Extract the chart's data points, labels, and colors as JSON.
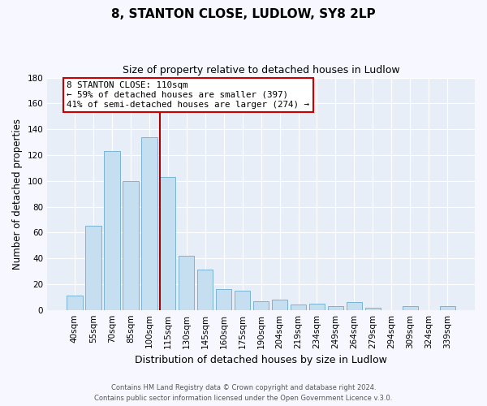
{
  "title": "8, STANTON CLOSE, LUDLOW, SY8 2LP",
  "subtitle": "Size of property relative to detached houses in Ludlow",
  "xlabel": "Distribution of detached houses by size in Ludlow",
  "ylabel": "Number of detached properties",
  "bar_labels": [
    "40sqm",
    "55sqm",
    "70sqm",
    "85sqm",
    "100sqm",
    "115sqm",
    "130sqm",
    "145sqm",
    "160sqm",
    "175sqm",
    "190sqm",
    "204sqm",
    "219sqm",
    "234sqm",
    "249sqm",
    "264sqm",
    "279sqm",
    "294sqm",
    "309sqm",
    "324sqm",
    "339sqm"
  ],
  "bar_values": [
    11,
    65,
    123,
    100,
    134,
    103,
    42,
    31,
    16,
    15,
    7,
    8,
    4,
    5,
    3,
    6,
    2,
    0,
    3,
    0,
    3
  ],
  "bar_color": "#c5dff0",
  "bar_edge_color": "#7ab4d4",
  "ylim": [
    0,
    180
  ],
  "yticks": [
    0,
    20,
    40,
    60,
    80,
    100,
    120,
    140,
    160,
    180
  ],
  "property_line_color": "#aa0000",
  "annotation_title": "8 STANTON CLOSE: 110sqm",
  "annotation_line1": "← 59% of detached houses are smaller (397)",
  "annotation_line2": "41% of semi-detached houses are larger (274) →",
  "footer1": "Contains HM Land Registry data © Crown copyright and database right 2024.",
  "footer2": "Contains public sector information licensed under the Open Government Licence v.3.0.",
  "background_color": "#f7f8ff",
  "plot_bg_color": "#e8eef8",
  "grid_color": "#ffffff"
}
